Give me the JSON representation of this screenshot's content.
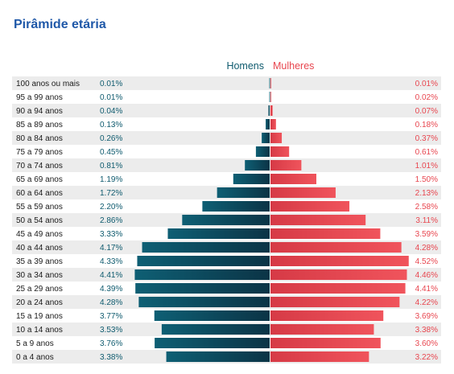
{
  "title": "Pirâmide etária",
  "legend": {
    "men": "Homens",
    "women": "Mulheres"
  },
  "colors": {
    "men": "#0e5a6e",
    "women": "#e8464f",
    "stripe": "#ececec",
    "title": "#1f58a8"
  },
  "chart_data": {
    "type": "bar",
    "categories": [
      "100 anos ou mais",
      "95 a 99 anos",
      "90 a 94 anos",
      "85 a 89 anos",
      "80 a 84 anos",
      "75 a 79 anos",
      "70 a 74 anos",
      "65 a 69 anos",
      "60 a 64 anos",
      "55 a 59 anos",
      "50 a 54 anos",
      "45 a 49 anos",
      "40 a 44 anos",
      "35 a 39 anos",
      "30 a 34 anos",
      "25 a 29 anos",
      "20 a 24 anos",
      "15 a 19 anos",
      "10 a 14 anos",
      "5 a 9 anos",
      "0 a 4 anos"
    ],
    "series": [
      {
        "name": "Homens",
        "values": [
          0.01,
          0.01,
          0.04,
          0.13,
          0.26,
          0.45,
          0.81,
          1.19,
          1.72,
          2.2,
          2.86,
          3.33,
          4.17,
          4.33,
          4.41,
          4.39,
          4.28,
          3.77,
          3.53,
          3.76,
          3.38
        ],
        "labels": [
          "0.01%",
          "0.01%",
          "0.04%",
          "0.13%",
          "0.26%",
          "0.45%",
          "0.81%",
          "1.19%",
          "1.72%",
          "2.20%",
          "2.86%",
          "3.33%",
          "4.17%",
          "4.33%",
          "4.41%",
          "4.39%",
          "4.28%",
          "3.77%",
          "3.53%",
          "3.76%",
          "3.38%"
        ]
      },
      {
        "name": "Mulheres",
        "values": [
          0.01,
          0.02,
          0.07,
          0.18,
          0.37,
          0.61,
          1.01,
          1.5,
          2.13,
          2.58,
          3.11,
          3.59,
          4.28,
          4.52,
          4.46,
          4.41,
          4.22,
          3.69,
          3.38,
          3.6,
          3.22
        ],
        "labels": [
          "0.01%",
          "0.02%",
          "0.07%",
          "0.18%",
          "0.37%",
          "0.61%",
          "1.01%",
          "1.50%",
          "2.13%",
          "2.58%",
          "3.11%",
          "3.59%",
          "4.28%",
          "4.52%",
          "4.46%",
          "4.41%",
          "4.22%",
          "3.69%",
          "3.38%",
          "3.60%",
          "3.22%"
        ]
      }
    ]
  }
}
